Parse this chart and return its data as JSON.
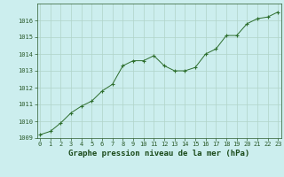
{
  "x": [
    0,
    1,
    2,
    3,
    4,
    5,
    6,
    7,
    8,
    9,
    10,
    11,
    12,
    13,
    14,
    15,
    16,
    17,
    18,
    19,
    20,
    21,
    22,
    23
  ],
  "y": [
    1009.2,
    1009.4,
    1009.9,
    1010.5,
    1010.9,
    1011.2,
    1011.8,
    1012.2,
    1013.3,
    1013.6,
    1013.6,
    1013.9,
    1013.3,
    1013.0,
    1013.0,
    1013.2,
    1014.0,
    1014.3,
    1015.1,
    1015.1,
    1015.8,
    1016.1,
    1016.2,
    1016.5
  ],
  "line_color": "#2d6e2d",
  "marker_color": "#2d6e2d",
  "bg_color": "#cceeee",
  "grid_color": "#b0d4c8",
  "xlabel": "Graphe pression niveau de la mer (hPa)",
  "ylim_min": 1009,
  "ylim_max": 1017,
  "yticks": [
    1009,
    1010,
    1011,
    1012,
    1013,
    1014,
    1015,
    1016
  ],
  "xticks": [
    0,
    1,
    2,
    3,
    4,
    5,
    6,
    7,
    8,
    9,
    10,
    11,
    12,
    13,
    14,
    15,
    16,
    17,
    18,
    19,
    20,
    21,
    22,
    23
  ],
  "xlabel_fontsize": 6.5,
  "tick_fontsize": 5.0,
  "title_color": "#1a4a1a",
  "tick_color": "#2a5a2a"
}
